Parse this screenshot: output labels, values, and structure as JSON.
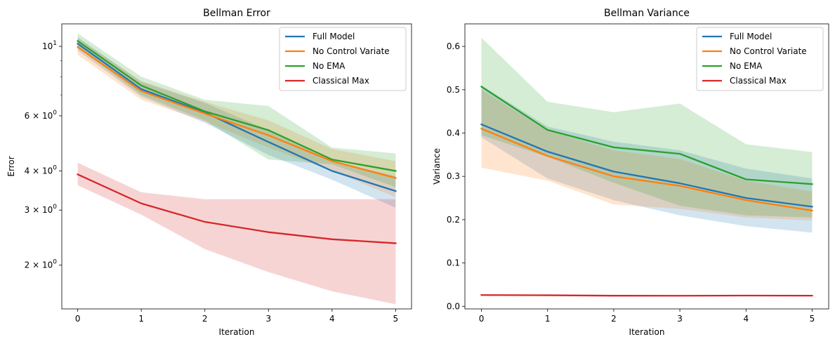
{
  "chart_data": [
    {
      "type": "line",
      "title": "Bellman Error",
      "xlabel": "Iteration",
      "ylabel": "Error",
      "yscale": "log",
      "x": [
        0,
        1,
        2,
        3,
        4,
        5
      ],
      "xlim": [
        -0.25,
        5.25
      ],
      "ylim": [
        1.45,
        11.8
      ],
      "xticks": [
        "0",
        "1",
        "2",
        "3",
        "4",
        "5"
      ],
      "yticks": [
        {
          "value": 10,
          "base": "10",
          "exp": "1"
        },
        {
          "value": 6,
          "base": "6 × 10",
          "exp": "0"
        },
        {
          "value": 4,
          "base": "4 × 10",
          "exp": "0"
        },
        {
          "value": 3,
          "base": "3 × 10",
          "exp": "0"
        },
        {
          "value": 2,
          "base": "2 × 10",
          "exp": "0"
        }
      ],
      "minor_yticks": [
        7,
        8,
        9
      ],
      "legend_position": "upper-right",
      "series": [
        {
          "name": "Full Model",
          "color": "#1f77b4",
          "values": [
            10.2,
            7.3,
            6.15,
            4.95,
            4.0,
            3.45
          ],
          "lower": [
            9.7,
            6.9,
            5.7,
            4.5,
            3.75,
            3.05
          ],
          "upper": [
            10.7,
            7.7,
            6.6,
            5.4,
            4.3,
            3.85
          ]
        },
        {
          "name": "No Control Variate",
          "color": "#ff7f0e",
          "values": [
            9.95,
            7.2,
            6.1,
            5.2,
            4.3,
            3.8
          ],
          "lower": [
            9.4,
            6.75,
            5.75,
            4.75,
            4.0,
            3.3
          ],
          "upper": [
            10.6,
            7.75,
            6.65,
            5.8,
            4.7,
            4.3
          ]
        },
        {
          "name": "No EMA",
          "color": "#2ca02c",
          "values": [
            10.4,
            7.5,
            6.2,
            5.4,
            4.35,
            4.0
          ],
          "lower": [
            9.9,
            7.0,
            5.8,
            4.35,
            4.2,
            3.55
          ],
          "upper": [
            11.0,
            8.0,
            6.75,
            6.45,
            4.75,
            4.55
          ]
        },
        {
          "name": "Classical Max",
          "color": "#d62728",
          "values": [
            3.9,
            3.15,
            2.75,
            2.55,
            2.42,
            2.35
          ],
          "lower": [
            3.6,
            2.9,
            2.25,
            1.9,
            1.65,
            1.5
          ],
          "upper": [
            4.25,
            3.42,
            3.25,
            3.25,
            3.25,
            3.25
          ]
        }
      ]
    },
    {
      "type": "line",
      "title": "Bellman Variance",
      "xlabel": "Iteration",
      "ylabel": "Variance",
      "yscale": "linear",
      "x": [
        0,
        1,
        2,
        3,
        4,
        5
      ],
      "xlim": [
        -0.25,
        5.25
      ],
      "ylim": [
        -0.006,
        0.652
      ],
      "xticks": [
        "0",
        "1",
        "2",
        "3",
        "4",
        "5"
      ],
      "yticks": [
        {
          "value": 0.0,
          "label": "0.0"
        },
        {
          "value": 0.1,
          "label": "0.1"
        },
        {
          "value": 0.2,
          "label": "0.2"
        },
        {
          "value": 0.3,
          "label": "0.3"
        },
        {
          "value": 0.4,
          "label": "0.4"
        },
        {
          "value": 0.5,
          "label": "0.5"
        },
        {
          "value": 0.6,
          "label": "0.6"
        }
      ],
      "legend_position": "upper-right",
      "series": [
        {
          "name": "Full Model",
          "color": "#1f77b4",
          "values": [
            0.42,
            0.357,
            0.311,
            0.284,
            0.25,
            0.23
          ],
          "lower": [
            0.39,
            0.295,
            0.245,
            0.21,
            0.185,
            0.17
          ],
          "upper": [
            0.51,
            0.415,
            0.38,
            0.36,
            0.318,
            0.295
          ]
        },
        {
          "name": "No Control Variate",
          "color": "#ff7f0e",
          "values": [
            0.41,
            0.347,
            0.3,
            0.278,
            0.245,
            0.221
          ],
          "lower": [
            0.32,
            0.29,
            0.235,
            0.225,
            0.205,
            0.198
          ],
          "upper": [
            0.5,
            0.405,
            0.36,
            0.34,
            0.29,
            0.265
          ]
        },
        {
          "name": "No EMA",
          "color": "#2ca02c",
          "values": [
            0.507,
            0.407,
            0.367,
            0.352,
            0.293,
            0.282
          ],
          "lower": [
            0.395,
            0.345,
            0.285,
            0.232,
            0.21,
            0.205
          ],
          "upper": [
            0.62,
            0.472,
            0.448,
            0.468,
            0.374,
            0.356
          ]
        },
        {
          "name": "Classical Max",
          "color": "#d62728",
          "values": [
            0.026,
            0.0255,
            0.0245,
            0.0244,
            0.0248,
            0.0246
          ],
          "lower": [
            0.025,
            0.0245,
            0.0235,
            0.0234,
            0.0238,
            0.0236
          ],
          "upper": [
            0.027,
            0.0265,
            0.0255,
            0.0254,
            0.0258,
            0.0256
          ]
        }
      ]
    }
  ]
}
